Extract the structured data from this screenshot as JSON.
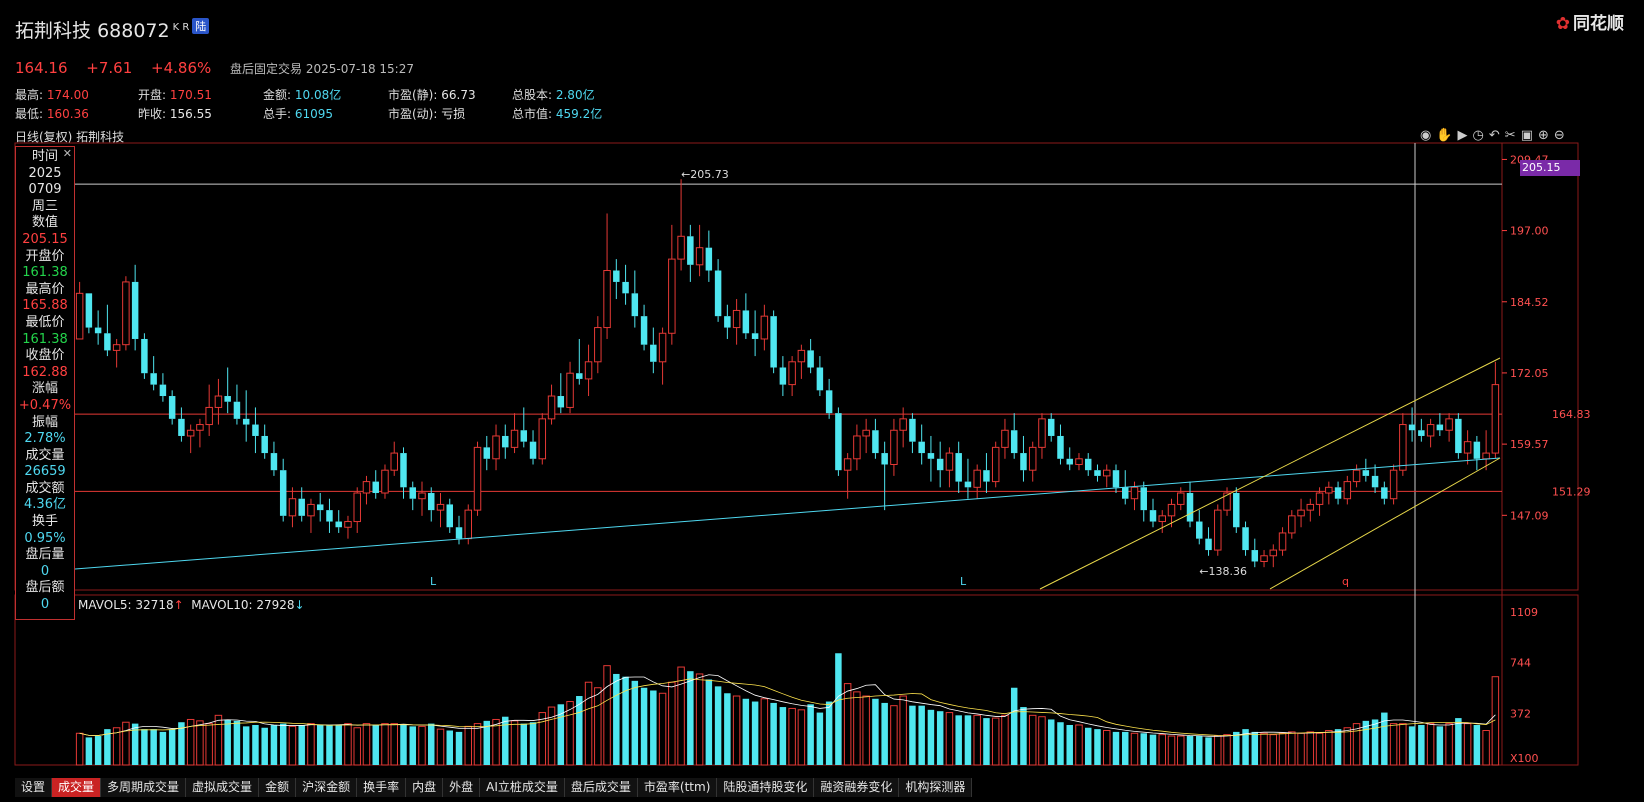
{
  "header": {
    "name": "拓荆科技",
    "code": "688072",
    "badge": "K R",
    "market": "陆",
    "brand": "同花顺",
    "price": "164.16",
    "change": "+7.61",
    "pct": "+4.86%",
    "note": "盘后固定交易 2025-07-18 15:27"
  },
  "stats": [
    {
      "k": "最高:",
      "v": "174.00",
      "c": "red"
    },
    {
      "k": "开盘:",
      "v": "170.51",
      "c": "red"
    },
    {
      "k": "金额:",
      "v": "10.08亿",
      "c": "cyan"
    },
    {
      "k": "市盈(静):",
      "v": "66.73",
      "c": "white"
    },
    {
      "k": "总股本:",
      "v": "2.80亿",
      "c": "cyan"
    },
    {
      "k": "最低:",
      "v": "160.36",
      "c": "red"
    },
    {
      "k": "昨收:",
      "v": "156.55",
      "c": "white"
    },
    {
      "k": "总手:",
      "v": "61095",
      "c": "cyan"
    },
    {
      "k": "市盈(动):",
      "v": "亏损",
      "c": "white"
    },
    {
      "k": "总市值:",
      "v": "459.2亿",
      "c": "cyan"
    }
  ],
  "chart_header": "日线(复权) 拓荆科技",
  "tooltip": [
    {
      "t": "时间",
      "c": "white"
    },
    {
      "t": "2025",
      "c": "white"
    },
    {
      "t": "0709",
      "c": "white"
    },
    {
      "t": "周三",
      "c": "white"
    },
    {
      "t": "数值",
      "c": "white"
    },
    {
      "t": "205.15",
      "c": "red"
    },
    {
      "t": "开盘价",
      "c": "white"
    },
    {
      "t": "161.38",
      "c": "green"
    },
    {
      "t": "最高价",
      "c": "white"
    },
    {
      "t": "165.88",
      "c": "red"
    },
    {
      "t": "最低价",
      "c": "white"
    },
    {
      "t": "161.38",
      "c": "green"
    },
    {
      "t": "收盘价",
      "c": "white"
    },
    {
      "t": "162.88",
      "c": "red"
    },
    {
      "t": "涨幅",
      "c": "white"
    },
    {
      "t": "+0.47%",
      "c": "red"
    },
    {
      "t": "振幅",
      "c": "white"
    },
    {
      "t": "2.78%",
      "c": "cyan"
    },
    {
      "t": "成交量",
      "c": "white"
    },
    {
      "t": "26659",
      "c": "cyan"
    },
    {
      "t": "成交额",
      "c": "white"
    },
    {
      "t": "4.36亿",
      "c": "cyan"
    },
    {
      "t": "换手",
      "c": "white"
    },
    {
      "t": "0.95%",
      "c": "cyan"
    },
    {
      "t": "盘后量",
      "c": "white"
    },
    {
      "t": "0",
      "c": "cyan"
    },
    {
      "t": "盘后额",
      "c": "white"
    },
    {
      "t": "0",
      "c": "cyan"
    }
  ],
  "price_axis": [
    "209.47",
    "197.00",
    "184.52",
    "172.05",
    "159.57",
    "147.09"
  ],
  "crosshair_value": "205.15",
  "annotations": {
    "high": "←205.73",
    "low": "←138.36",
    "line1": "164.83",
    "line2": "151.29",
    "markL1": "L",
    "markL2": "L",
    "markQ": "q"
  },
  "vol_header": {
    "m5": "MAVOL5: 32718",
    "m10": "MAVOL10: 27928"
  },
  "vol_axis": [
    "1109",
    "744",
    "372",
    "X100"
  ],
  "tabs": [
    "设置",
    "成交量",
    "多周期成交量",
    "虚拟成交量",
    "金额",
    "沪深金额",
    "换手率",
    "内盘",
    "外盘",
    "AI立桩成交量",
    "盘后成交量",
    "市盈率(ttm)",
    "陆股通持股变化",
    "融资融券变化",
    "机构探测器"
  ],
  "active_tab": 1,
  "colors": {
    "up": "#e53935",
    "down": "#4fe6f0",
    "ma5": "#ffffff",
    "ma10": "#ffe44d",
    "grid": "#8b1a1a"
  },
  "chart_data": {
    "type": "candlestick",
    "price_range": [
      134,
      212
    ],
    "candles": [
      [
        178,
        188,
        178,
        186
      ],
      [
        186,
        186,
        179,
        180
      ],
      [
        180,
        183,
        177,
        179
      ],
      [
        179,
        184,
        175,
        176
      ],
      [
        176,
        178,
        173,
        177
      ],
      [
        177,
        189,
        176,
        188
      ],
      [
        188,
        191,
        176,
        178
      ],
      [
        178,
        179,
        171,
        172
      ],
      [
        172,
        175,
        169,
        170
      ],
      [
        170,
        172,
        167,
        168
      ],
      [
        168,
        169,
        163,
        164
      ],
      [
        164,
        166,
        160,
        161
      ],
      [
        161,
        163,
        158,
        162
      ],
      [
        162,
        164,
        159,
        163
      ],
      [
        163,
        170,
        161,
        166
      ],
      [
        166,
        171,
        163,
        168
      ],
      [
        168,
        173,
        165,
        167
      ],
      [
        167,
        170,
        163,
        164
      ],
      [
        164,
        169,
        160,
        163
      ],
      [
        163,
        166,
        158,
        161
      ],
      [
        161,
        163,
        157,
        158
      ],
      [
        158,
        160,
        154,
        155
      ],
      [
        155,
        157,
        146,
        147
      ],
      [
        147,
        152,
        145,
        150
      ],
      [
        150,
        152,
        146,
        147
      ],
      [
        147,
        150,
        144,
        149
      ],
      [
        149,
        151,
        146,
        148
      ],
      [
        148,
        150,
        144,
        146
      ],
      [
        146,
        148,
        144,
        145
      ],
      [
        145,
        147,
        143,
        146
      ],
      [
        146,
        152,
        144,
        151
      ],
      [
        151,
        154,
        149,
        153
      ],
      [
        153,
        155,
        150,
        151
      ],
      [
        151,
        156,
        150,
        155
      ],
      [
        155,
        160,
        154,
        158
      ],
      [
        158,
        159,
        150,
        152
      ],
      [
        152,
        153,
        148,
        150
      ],
      [
        150,
        153,
        147,
        151
      ],
      [
        151,
        152,
        146,
        148
      ],
      [
        148,
        151,
        145,
        149
      ],
      [
        149,
        150,
        144,
        145
      ],
      [
        145,
        147,
        142,
        143
      ],
      [
        143,
        149,
        142,
        148
      ],
      [
        148,
        160,
        147,
        159
      ],
      [
        159,
        161,
        155,
        157
      ],
      [
        157,
        163,
        155,
        161
      ],
      [
        161,
        163,
        157,
        159
      ],
      [
        159,
        165,
        158,
        162
      ],
      [
        162,
        166,
        159,
        160
      ],
      [
        160,
        162,
        156,
        157
      ],
      [
        157,
        165,
        156,
        164
      ],
      [
        164,
        170,
        163,
        168
      ],
      [
        168,
        172,
        165,
        166
      ],
      [
        166,
        174,
        165,
        172
      ],
      [
        172,
        178,
        170,
        171
      ],
      [
        171,
        177,
        168,
        174
      ],
      [
        174,
        182,
        172,
        180
      ],
      [
        180,
        200,
        178,
        190
      ],
      [
        190,
        192,
        185,
        188
      ],
      [
        188,
        191,
        184,
        186
      ],
      [
        186,
        190,
        180,
        182
      ],
      [
        182,
        184,
        176,
        177
      ],
      [
        177,
        180,
        172,
        174
      ],
      [
        174,
        180,
        170,
        179
      ],
      [
        179,
        198,
        177,
        192
      ],
      [
        192,
        206,
        190,
        196
      ],
      [
        196,
        198,
        188,
        191
      ],
      [
        191,
        198,
        189,
        194
      ],
      [
        194,
        197,
        188,
        190
      ],
      [
        190,
        192,
        181,
        182
      ],
      [
        182,
        184,
        178,
        180
      ],
      [
        180,
        185,
        177,
        183
      ],
      [
        183,
        186,
        178,
        179
      ],
      [
        179,
        183,
        175,
        178
      ],
      [
        178,
        184,
        176,
        182
      ],
      [
        182,
        183,
        172,
        173
      ],
      [
        173,
        175,
        168,
        170
      ],
      [
        170,
        175,
        168,
        174
      ],
      [
        174,
        177,
        171,
        176
      ],
      [
        176,
        178,
        172,
        173
      ],
      [
        173,
        175,
        168,
        169
      ],
      [
        169,
        171,
        164,
        165
      ],
      [
        165,
        166,
        154,
        155
      ],
      [
        155,
        158,
        150,
        157
      ],
      [
        157,
        163,
        155,
        161
      ],
      [
        161,
        164,
        158,
        162
      ],
      [
        162,
        164,
        157,
        158
      ],
      [
        158,
        160,
        148,
        156
      ],
      [
        156,
        164,
        154,
        162
      ],
      [
        162,
        166,
        159,
        164
      ],
      [
        164,
        165,
        158,
        160
      ],
      [
        160,
        163,
        156,
        158
      ],
      [
        158,
        161,
        153,
        157
      ],
      [
        157,
        160,
        152,
        155
      ],
      [
        155,
        159,
        152,
        158
      ],
      [
        158,
        160,
        151,
        153
      ],
      [
        153,
        157,
        150,
        152
      ],
      [
        152,
        156,
        150,
        155
      ],
      [
        155,
        158,
        151,
        153
      ],
      [
        153,
        160,
        152,
        159
      ],
      [
        159,
        164,
        157,
        162
      ],
      [
        162,
        165,
        157,
        158
      ],
      [
        158,
        161,
        153,
        155
      ],
      [
        155,
        160,
        153,
        159
      ],
      [
        159,
        165,
        157,
        164
      ],
      [
        164,
        165,
        160,
        161
      ],
      [
        161,
        163,
        156,
        157
      ],
      [
        157,
        159,
        155,
        156
      ],
      [
        156,
        158,
        155,
        157
      ],
      [
        157,
        158,
        154,
        155
      ],
      [
        155,
        156,
        153,
        154
      ],
      [
        154,
        156,
        152,
        155
      ],
      [
        155,
        156,
        151,
        152
      ],
      [
        152,
        155,
        149,
        150
      ],
      [
        150,
        153,
        148,
        152
      ],
      [
        152,
        153,
        146,
        148
      ],
      [
        148,
        150,
        145,
        146
      ],
      [
        146,
        148,
        144,
        147
      ],
      [
        147,
        150,
        145,
        149
      ],
      [
        149,
        152,
        148,
        151
      ],
      [
        151,
        153,
        145,
        146
      ],
      [
        146,
        148,
        142,
        143
      ],
      [
        143,
        145,
        140,
        141
      ],
      [
        141,
        149,
        140,
        148
      ],
      [
        148,
        152,
        147,
        151
      ],
      [
        151,
        152,
        144,
        145
      ],
      [
        145,
        146,
        140,
        141
      ],
      [
        141,
        143,
        138,
        139
      ],
      [
        139,
        141,
        138,
        140
      ],
      [
        140,
        142,
        138,
        141
      ],
      [
        141,
        145,
        140,
        144
      ],
      [
        144,
        148,
        143,
        147
      ],
      [
        147,
        150,
        145,
        148
      ],
      [
        148,
        150,
        146,
        149
      ],
      [
        149,
        152,
        147,
        151
      ],
      [
        151,
        153,
        149,
        152
      ],
      [
        152,
        153,
        149,
        150
      ],
      [
        150,
        154,
        149,
        153
      ],
      [
        153,
        156,
        152,
        155
      ],
      [
        155,
        157,
        153,
        154
      ],
      [
        154,
        156,
        151,
        152
      ],
      [
        152,
        153,
        149,
        150
      ],
      [
        150,
        156,
        149,
        155
      ],
      [
        155,
        165,
        154,
        163
      ],
      [
        163,
        166,
        160,
        162
      ],
      [
        162,
        164,
        160,
        161
      ],
      [
        161,
        164,
        159,
        163
      ],
      [
        163,
        165,
        161,
        162
      ],
      [
        162,
        165,
        160,
        164
      ],
      [
        164,
        165,
        157,
        158
      ],
      [
        158,
        162,
        156,
        160
      ],
      [
        160,
        161,
        155,
        157
      ],
      [
        157,
        162,
        155,
        158
      ],
      [
        158,
        174,
        157,
        170
      ]
    ],
    "volumes": [
      230,
      200,
      210,
      260,
      270,
      310,
      300,
      260,
      260,
      240,
      260,
      310,
      330,
      320,
      300,
      360,
      330,
      320,
      280,
      290,
      270,
      290,
      300,
      280,
      290,
      300,
      290,
      290,
      290,
      300,
      270,
      300,
      290,
      300,
      300,
      290,
      280,
      280,
      300,
      260,
      250,
      240,
      280,
      300,
      320,
      330,
      350,
      320,
      300,
      310,
      380,
      420,
      440,
      460,
      500,
      600,
      560,
      720,
      660,
      640,
      610,
      560,
      540,
      520,
      600,
      710,
      680,
      660,
      620,
      570,
      520,
      500,
      480,
      460,
      480,
      450,
      420,
      410,
      400,
      440,
      380,
      460,
      810,
      590,
      530,
      500,
      480,
      450,
      430,
      500,
      430,
      430,
      400,
      390,
      380,
      360,
      360,
      360,
      340,
      340,
      360,
      560,
      420,
      360,
      350,
      330,
      310,
      290,
      290,
      270,
      260,
      250,
      240,
      240,
      230,
      230,
      220,
      220,
      210,
      210,
      210,
      210,
      200,
      210,
      220,
      240,
      260,
      240,
      230,
      220,
      230,
      240,
      230,
      240,
      230,
      250,
      260,
      270,
      300,
      320,
      330,
      380,
      300,
      300,
      280,
      290,
      300,
      280,
      300,
      340,
      300,
      290,
      250,
      640
    ]
  }
}
